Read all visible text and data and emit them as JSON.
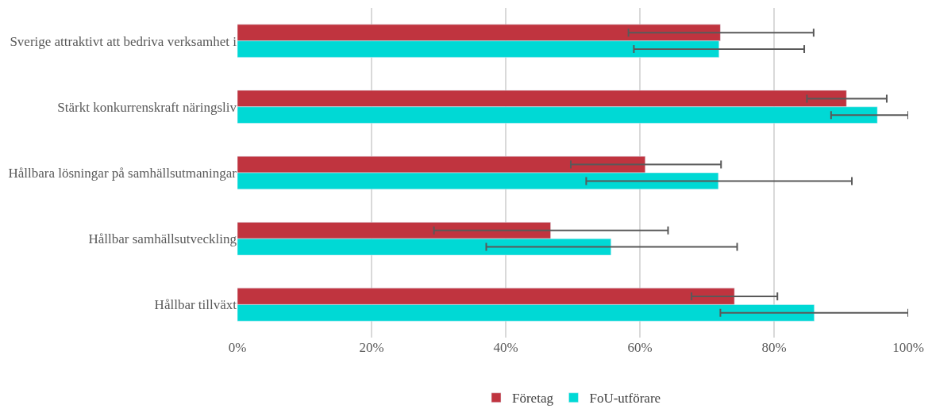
{
  "chart_data": {
    "type": "bar",
    "orientation": "horizontal",
    "categories": [
      "Sverige attraktivt att bedriva verksamhet i",
      "Stärkt konkurrenskraft näringsliv",
      "Hållbara lösningar på samhällsutmaningar",
      "Hållbar samhällsutveckling",
      "Hållbar tillväxt"
    ],
    "series": [
      {
        "name": "Företag",
        "color": "#c0343f",
        "values": [
          72.0,
          90.8,
          60.8,
          46.7,
          74.1
        ],
        "errors": [
          [
            58.3,
            85.9
          ],
          [
            84.9,
            96.8
          ],
          [
            49.7,
            72.1
          ],
          [
            29.3,
            64.2
          ],
          [
            67.7,
            80.5
          ]
        ]
      },
      {
        "name": "FoU-utförare",
        "color": "#00d9d5",
        "values": [
          71.8,
          95.4,
          71.7,
          55.7,
          86.0
        ],
        "errors": [
          [
            59.1,
            84.5
          ],
          [
            88.5,
            100
          ],
          [
            52.0,
            91.6
          ],
          [
            37.1,
            74.5
          ],
          [
            72.0,
            100
          ]
        ]
      }
    ],
    "xlim": [
      0,
      100
    ],
    "xticks": [
      {
        "value": 0,
        "label": "0%"
      },
      {
        "value": 20,
        "label": "20%"
      },
      {
        "value": 40,
        "label": "40%"
      },
      {
        "value": 60,
        "label": "60%"
      },
      {
        "value": 80,
        "label": "80%"
      },
      {
        "value": 100,
        "label": "100%"
      }
    ],
    "grid": "x",
    "legend": "bottom"
  }
}
